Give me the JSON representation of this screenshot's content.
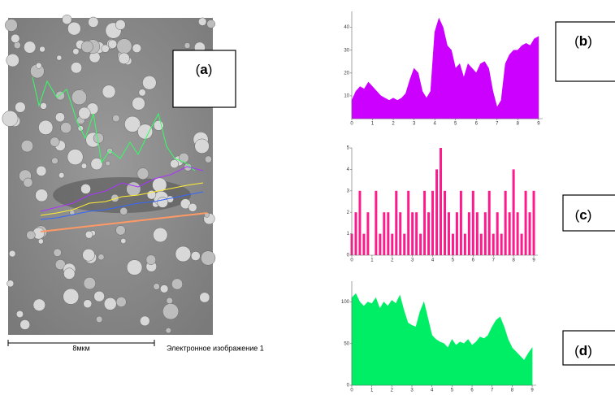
{
  "labels": {
    "a": "a",
    "b": "b",
    "c": "c",
    "d": "d",
    "open": "(",
    "close": ")"
  },
  "scale_bar": "8мкм",
  "caption": "Электронное изображение 1",
  "chart_data": [
    {
      "type": "area",
      "color": "#cc00ff",
      "x": [
        0,
        0.2,
        0.4,
        0.6,
        0.8,
        1,
        1.2,
        1.4,
        1.6,
        1.8,
        2,
        2.2,
        2.4,
        2.6,
        2.8,
        3,
        3.2,
        3.4,
        3.6,
        3.8,
        4,
        4.2,
        4.4,
        4.6,
        4.8,
        5,
        5.2,
        5.4,
        5.6,
        5.8,
        6,
        6.2,
        6.4,
        6.6,
        6.8,
        7,
        7.2,
        7.4,
        7.6,
        7.8,
        8,
        8.2,
        8.4,
        8.6,
        8.8,
        9
      ],
      "values": [
        8,
        12,
        14,
        13,
        16,
        14,
        12,
        10,
        9,
        8,
        9,
        8,
        9,
        11,
        17,
        22,
        20,
        12,
        9,
        12,
        38,
        44,
        40,
        32,
        30,
        22,
        24,
        18,
        24,
        22,
        20,
        24,
        25,
        22,
        12,
        5,
        8,
        24,
        28,
        30,
        30,
        32,
        33,
        32,
        35,
        36
      ],
      "xlim": [
        0,
        9.2
      ],
      "ylim": [
        0,
        47
      ],
      "xticks": [
        0,
        1,
        2,
        3,
        4,
        5,
        6,
        7,
        8,
        9
      ],
      "yticks": [
        10,
        20,
        30,
        40
      ]
    },
    {
      "type": "bar",
      "color": "#ff1a8c",
      "x": [
        0,
        0.2,
        0.4,
        0.6,
        0.8,
        1,
        1.2,
        1.4,
        1.6,
        1.8,
        2,
        2.2,
        2.4,
        2.6,
        2.8,
        3,
        3.2,
        3.4,
        3.6,
        3.8,
        4,
        4.2,
        4.4,
        4.6,
        4.8,
        5,
        5.2,
        5.4,
        5.6,
        5.8,
        6,
        6.2,
        6.4,
        6.6,
        6.8,
        7,
        7.2,
        7.4,
        7.6,
        7.8,
        8,
        8.2,
        8.4,
        8.6,
        8.8,
        9
      ],
      "values": [
        1,
        2,
        3,
        1,
        2,
        0,
        3,
        1,
        2,
        2,
        1,
        3,
        2,
        1,
        3,
        2,
        2,
        1,
        3,
        2,
        3,
        4,
        5,
        3,
        2,
        1,
        2,
        3,
        1,
        2,
        3,
        2,
        1,
        2,
        3,
        1,
        2,
        1,
        3,
        2,
        4,
        2,
        1,
        3,
        2,
        3
      ],
      "xlim": [
        0,
        9.2
      ],
      "ylim": [
        0,
        5
      ],
      "xticks": [
        0,
        1,
        2,
        3,
        4,
        5,
        6,
        7,
        8,
        9
      ],
      "yticks": [
        0,
        1,
        2,
        3,
        4,
        5
      ]
    },
    {
      "type": "area",
      "color": "#00ee66",
      "x": [
        0,
        0.2,
        0.4,
        0.6,
        0.8,
        1,
        1.2,
        1.4,
        1.6,
        1.8,
        2,
        2.2,
        2.4,
        2.6,
        2.8,
        3,
        3.2,
        3.4,
        3.6,
        3.8,
        4,
        4.2,
        4.4,
        4.6,
        4.8,
        5,
        5.2,
        5.4,
        5.6,
        5.8,
        6,
        6.2,
        6.4,
        6.6,
        6.8,
        7,
        7.2,
        7.4,
        7.6,
        7.8,
        8,
        8.2,
        8.4,
        8.6,
        8.8,
        9
      ],
      "values": [
        105,
        110,
        100,
        95,
        100,
        98,
        105,
        92,
        100,
        95,
        102,
        98,
        108,
        90,
        75,
        72,
        70,
        88,
        100,
        80,
        60,
        55,
        52,
        50,
        45,
        55,
        48,
        52,
        50,
        55,
        48,
        52,
        58,
        56,
        60,
        70,
        78,
        82,
        70,
        55,
        45,
        40,
        35,
        30,
        38,
        45
      ],
      "xlim": [
        0,
        9.2
      ],
      "ylim": [
        0,
        125
      ],
      "xticks": [
        0,
        1,
        2,
        3,
        4,
        5,
        6,
        7,
        8,
        9
      ],
      "yticks": [
        0,
        50,
        100
      ]
    }
  ]
}
